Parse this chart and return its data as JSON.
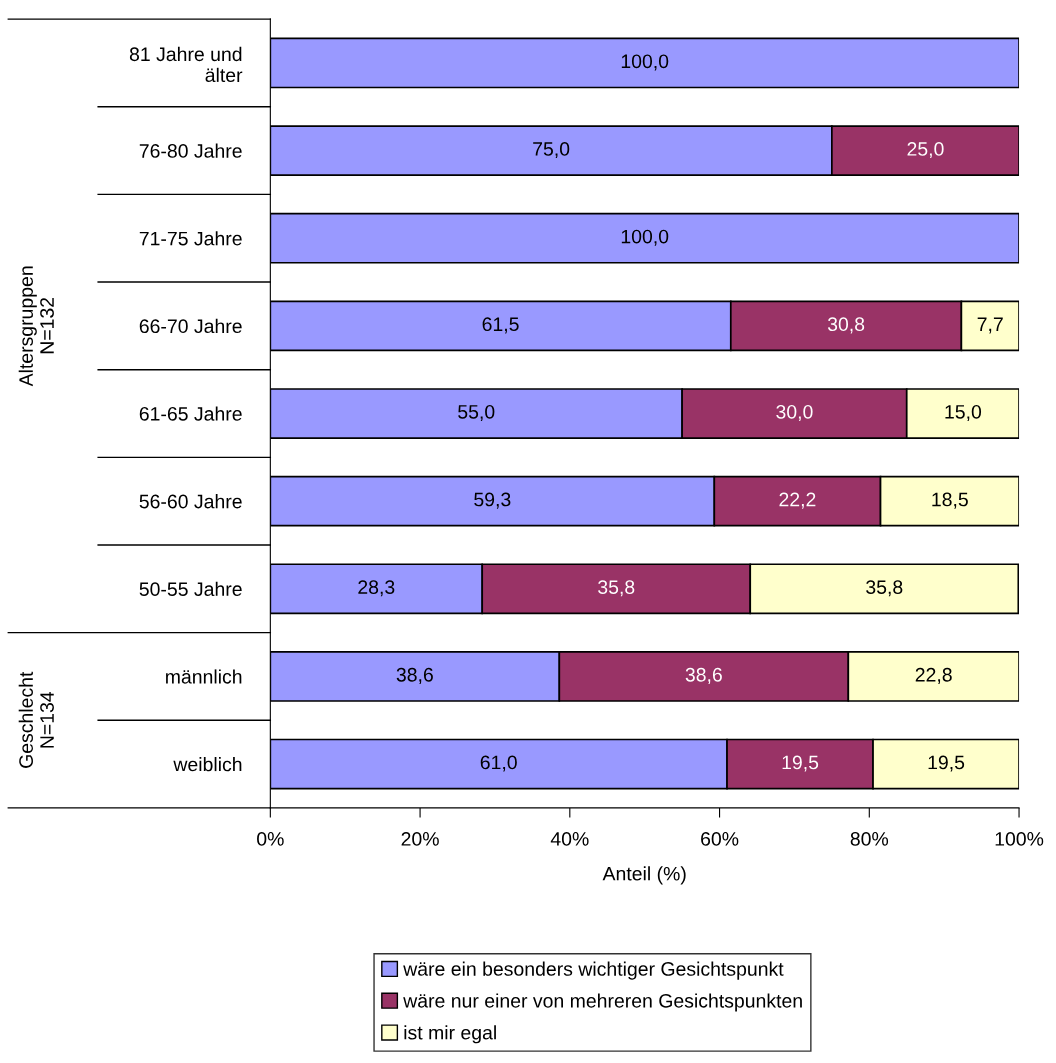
{
  "chart_data": {
    "type": "bar",
    "orientation": "horizontal",
    "stacked": true,
    "categories": [
      "81 Jahre und\nälter",
      "76-80 Jahre",
      "71-75 Jahre",
      "66-70 Jahre",
      "61-65 Jahre",
      "56-60 Jahre",
      "50-55 Jahre",
      "männlich",
      "weiblich"
    ],
    "xlabel": "Anteil (%)",
    "xlim": [
      0,
      100
    ],
    "xticks": [
      {
        "value": 0,
        "label": "0%"
      },
      {
        "value": 20,
        "label": "20%"
      },
      {
        "value": 40,
        "label": "40%"
      },
      {
        "value": 60,
        "label": "60%"
      },
      {
        "value": 80,
        "label": "80%"
      },
      {
        "value": 100,
        "label": "100%"
      }
    ],
    "series": [
      {
        "name": "wäre ein besonders wichtiger Gesichtspunkt",
        "color": "#9999ff",
        "values": [
          100.0,
          75.0,
          100.0,
          61.5,
          55.0,
          59.3,
          28.3,
          38.6,
          61.0
        ],
        "value_labels": [
          "100,0",
          "75,0",
          "100,0",
          "61,5",
          "55,0",
          "59,3",
          "28,3",
          "38,6",
          "61,0"
        ]
      },
      {
        "name": "wäre nur einer von mehreren Gesichtspunkten",
        "color": "#993366",
        "values": [
          null,
          25.0,
          null,
          30.8,
          30.0,
          22.2,
          35.8,
          38.6,
          19.5
        ],
        "value_labels": [
          null,
          "25,0",
          null,
          "30,8",
          "30,0",
          "22,2",
          "35,8",
          "38,6",
          "19,5"
        ]
      },
      {
        "name": "ist mir egal",
        "color": "#ffffcc",
        "values": [
          null,
          null,
          null,
          7.7,
          15.0,
          18.5,
          35.8,
          22.8,
          19.5
        ],
        "value_labels": [
          null,
          null,
          null,
          "7,7",
          "15,0",
          "18,5",
          "35,8",
          "22,8",
          "19,5"
        ]
      }
    ],
    "annotations": [
      "Altersgruppen\nN=132",
      "Geschlecht\nN=134"
    ],
    "legend": "bottom",
    "grid": false
  }
}
